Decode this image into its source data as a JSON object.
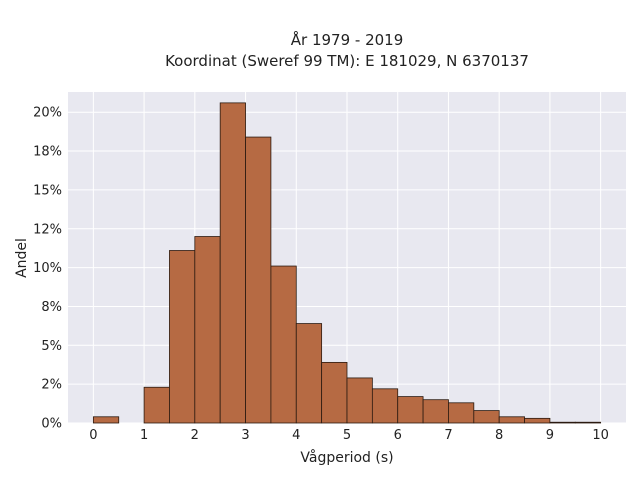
{
  "chart_data": {
    "type": "bar",
    "title_line1": "År 1979 - 2019",
    "title_line2": "Koordinat (Sweref 99 TM): E 181029, N 6370137",
    "xlabel": "Vågperiod (s)",
    "ylabel": "Andel",
    "xlim": [
      -0.5,
      10.5
    ],
    "ylim": [
      0,
      21.3
    ],
    "x_ticks": [
      0,
      1,
      2,
      3,
      4,
      5,
      6,
      7,
      8,
      9,
      10
    ],
    "x_tick_labels": [
      "0",
      "1",
      "2",
      "3",
      "4",
      "5",
      "6",
      "7",
      "8",
      "9",
      "10"
    ],
    "y_ticks": [
      0,
      2.5,
      5,
      7.5,
      10,
      12.5,
      15,
      17.5,
      20
    ],
    "y_tick_labels": [
      "0%",
      "2%",
      "5%",
      "8%",
      "10%",
      "12%",
      "15%",
      "18%",
      "20%"
    ],
    "bin_width": 0.5,
    "bins": [
      {
        "x0": 0.0,
        "value": 0.4
      },
      {
        "x0": 0.5,
        "value": 0.0
      },
      {
        "x0": 1.0,
        "value": 2.3
      },
      {
        "x0": 1.5,
        "value": 11.1
      },
      {
        "x0": 2.0,
        "value": 12.0
      },
      {
        "x0": 2.5,
        "value": 20.6
      },
      {
        "x0": 3.0,
        "value": 18.4
      },
      {
        "x0": 3.5,
        "value": 10.1
      },
      {
        "x0": 4.0,
        "value": 6.4
      },
      {
        "x0": 4.5,
        "value": 3.9
      },
      {
        "x0": 5.0,
        "value": 2.9
      },
      {
        "x0": 5.5,
        "value": 2.2
      },
      {
        "x0": 6.0,
        "value": 1.7
      },
      {
        "x0": 6.5,
        "value": 1.5
      },
      {
        "x0": 7.0,
        "value": 1.3
      },
      {
        "x0": 7.5,
        "value": 0.8
      },
      {
        "x0": 8.0,
        "value": 0.4
      },
      {
        "x0": 8.5,
        "value": 0.3
      },
      {
        "x0": 9.0,
        "value": 0.05
      },
      {
        "x0": 9.5,
        "value": 0.05
      }
    ],
    "grid": true,
    "colors": {
      "bar_fill": "#b66a43",
      "bar_stroke": "#2b1a10",
      "plot_background": "#e8e8f0",
      "grid": "#ffffff"
    }
  }
}
